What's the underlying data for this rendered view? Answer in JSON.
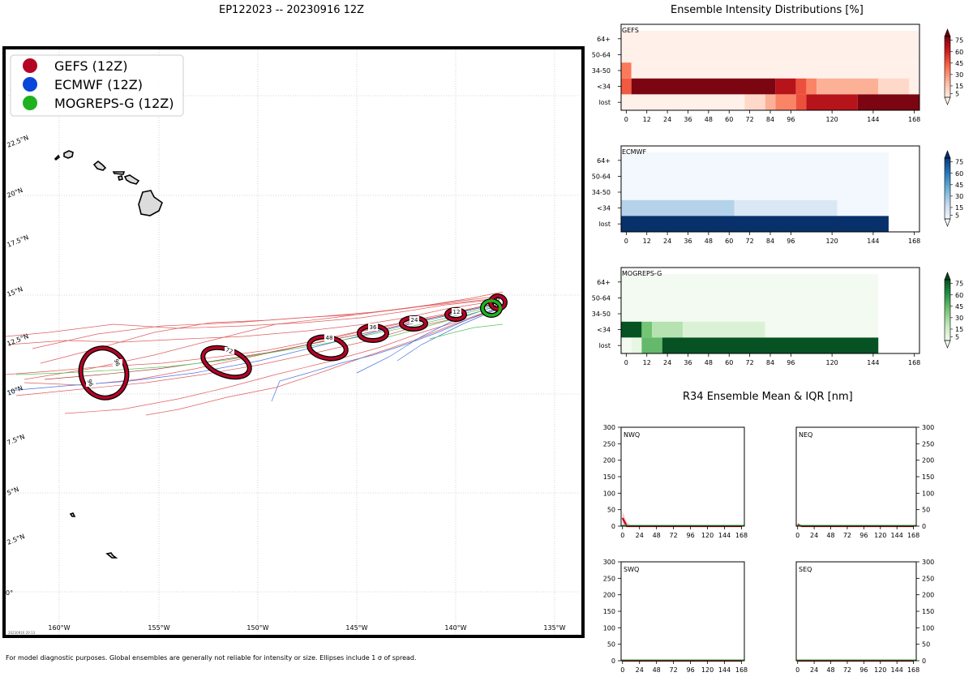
{
  "map": {
    "title": "EP122023 -- 20230916 12Z",
    "legend": [
      {
        "label": "GEFS (12Z)",
        "color": "#b40426"
      },
      {
        "label": "ECMWF (12Z)",
        "color": "#0b46db"
      },
      {
        "label": "MOGREPS-G (12Z)",
        "color": "#1fb21f"
      }
    ],
    "lat_labels": [
      "22.5°N",
      "20°N",
      "17.5°N",
      "15°N",
      "12.5°N",
      "10°N",
      "7.5°N",
      "5°N",
      "2.5°N",
      "0°"
    ],
    "lon_labels": [
      "160°W",
      "155°W",
      "150°W",
      "145°W",
      "140°W",
      "135°W"
    ],
    "stamp": "20230916 20:13",
    "footnote": "For model diagnostic purposes. Global ensembles are generally not reliable for intensity or size. Ellipses include 1 σ of spread."
  },
  "chart_data": [
    {
      "type": "heatmap",
      "title": "Ensemble Intensity Distributions [%]",
      "panels": [
        {
          "name": "GEFS",
          "cmap": "Reds",
          "y_categories": [
            "lost",
            "<34",
            "34-50",
            "50-64",
            "64+"
          ],
          "x_ticks": [
            0,
            12,
            24,
            36,
            48,
            60,
            72,
            84,
            96,
            120,
            144,
            168
          ],
          "xlim": [
            -3,
            171
          ],
          "cells": [
            {
              "cat": "64+",
              "x0": -3,
              "x1": 171,
              "v": 2
            },
            {
              "cat": "50-64",
              "x0": -3,
              "x1": 171,
              "v": 2
            },
            {
              "cat": "34-50",
              "x0": -3,
              "x1": 3,
              "v": 45
            },
            {
              "cat": "34-50",
              "x0": 3,
              "x1": 171,
              "v": 2
            },
            {
              "cat": "<34",
              "x0": -3,
              "x1": 3,
              "v": 55
            },
            {
              "cat": "<34",
              "x0": 3,
              "x1": 87,
              "v": 95
            },
            {
              "cat": "<34",
              "x0": 87,
              "x1": 99,
              "v": 80
            },
            {
              "cat": "<34",
              "x0": 99,
              "x1": 105,
              "v": 58
            },
            {
              "cat": "<34",
              "x0": 105,
              "x1": 111,
              "v": 42
            },
            {
              "cat": "<34",
              "x0": 111,
              "x1": 147,
              "v": 28
            },
            {
              "cat": "<34",
              "x0": 147,
              "x1": 165,
              "v": 12
            },
            {
              "cat": "<34",
              "x0": 165,
              "x1": 171,
              "v": 2
            },
            {
              "cat": "lost",
              "x0": -3,
              "x1": 69,
              "v": 2
            },
            {
              "cat": "lost",
              "x0": 69,
              "x1": 81,
              "v": 12
            },
            {
              "cat": "lost",
              "x0": 81,
              "x1": 87,
              "v": 28
            },
            {
              "cat": "lost",
              "x0": 87,
              "x1": 99,
              "v": 42
            },
            {
              "cat": "lost",
              "x0": 99,
              "x1": 105,
              "v": 58
            },
            {
              "cat": "lost",
              "x0": 105,
              "x1": 135,
              "v": 80
            },
            {
              "cat": "lost",
              "x0": 135,
              "x1": 171,
              "v": 95
            }
          ]
        },
        {
          "name": "ECMWF",
          "cmap": "Blues",
          "y_categories": [
            "lost",
            "<34",
            "34-50",
            "50-64",
            "64+"
          ],
          "x_ticks": [
            0,
            12,
            24,
            36,
            48,
            60,
            72,
            84,
            96,
            120,
            144,
            168
          ],
          "xlim": [
            -3,
            171
          ],
          "cells": [
            {
              "cat": "64+",
              "x0": -3,
              "x1": 153,
              "v": 2
            },
            {
              "cat": "50-64",
              "x0": -3,
              "x1": 153,
              "v": 2
            },
            {
              "cat": "34-50",
              "x0": -3,
              "x1": 153,
              "v": 2
            },
            {
              "cat": "<34",
              "x0": -3,
              "x1": 63,
              "v": 30
            },
            {
              "cat": "<34",
              "x0": 63,
              "x1": 123,
              "v": 15
            },
            {
              "cat": "<34",
              "x0": 123,
              "x1": 153,
              "v": 2
            },
            {
              "cat": "lost",
              "x0": -3,
              "x1": 153,
              "v": 100
            }
          ]
        },
        {
          "name": "MOGREPS-G",
          "cmap": "Greens",
          "y_categories": [
            "lost",
            "<34",
            "34-50",
            "50-64",
            "64+"
          ],
          "x_ticks": [
            0,
            12,
            24,
            36,
            48,
            60,
            72,
            84,
            96,
            120,
            144,
            168
          ],
          "xlim": [
            -3,
            171
          ],
          "cells": [
            {
              "cat": "64+",
              "x0": -3,
              "x1": 147,
              "v": 2
            },
            {
              "cat": "50-64",
              "x0": -3,
              "x1": 147,
              "v": 2
            },
            {
              "cat": "34-50",
              "x0": -3,
              "x1": 147,
              "v": 2
            },
            {
              "cat": "<34",
              "x0": -3,
              "x1": 9,
              "v": 95
            },
            {
              "cat": "<34",
              "x0": 9,
              "x1": 15,
              "v": 50
            },
            {
              "cat": "<34",
              "x0": 15,
              "x1": 33,
              "v": 30
            },
            {
              "cat": "<34",
              "x0": 33,
              "x1": 81,
              "v": 15
            },
            {
              "cat": "<34",
              "x0": 81,
              "x1": 147,
              "v": 2
            },
            {
              "cat": "lost",
              "x0": -3,
              "x1": 3,
              "v": 2
            },
            {
              "cat": "lost",
              "x0": 3,
              "x1": 9,
              "v": 8
            },
            {
              "cat": "lost",
              "x0": 9,
              "x1": 21,
              "v": 55
            },
            {
              "cat": "lost",
              "x0": 21,
              "x1": 147,
              "v": 95
            }
          ]
        }
      ],
      "colorbar_ticks": [
        5,
        15,
        30,
        45,
        60,
        75
      ]
    },
    {
      "type": "line",
      "title": "R34 Ensemble Mean & IQR [nm]",
      "x_ticks": [
        0,
        24,
        48,
        72,
        96,
        120,
        144,
        168
      ],
      "y_ticks": [
        0,
        50,
        100,
        150,
        200,
        250,
        300
      ],
      "xlim": [
        -2,
        172
      ],
      "ylim": [
        0,
        300
      ],
      "panels": [
        {
          "name": "NWQ",
          "y_axis": "left",
          "series": [
            {
              "name": "GEFS",
              "x": [
                0,
                6,
                12,
                24,
                48,
                96,
                144,
                168
              ],
              "values": [
                25,
                0,
                0,
                0,
                0,
                0,
                0,
                0
              ],
              "iqr_high": [
                45,
                12,
                2,
                0,
                0,
                0,
                0,
                0
              ]
            }
          ]
        },
        {
          "name": "NEQ",
          "y_axis": "right",
          "series": [
            {
              "name": "GEFS",
              "x": [
                0,
                6,
                12,
                24,
                48,
                96,
                144,
                168
              ],
              "values": [
                5,
                0,
                0,
                0,
                0,
                0,
                0,
                0
              ],
              "iqr_high": [
                10,
                2,
                0,
                0,
                0,
                0,
                0,
                0
              ]
            }
          ]
        },
        {
          "name": "SWQ",
          "y_axis": "left",
          "series": [
            {
              "name": "GEFS",
              "x": [
                0,
                168
              ],
              "values": [
                0,
                0
              ],
              "iqr_high": [
                0,
                0
              ]
            }
          ]
        },
        {
          "name": "SEQ",
          "y_axis": "right",
          "series": [
            {
              "name": "GEFS",
              "x": [
                0,
                168
              ],
              "values": [
                0,
                0
              ],
              "iqr_high": [
                0,
                0
              ]
            }
          ]
        }
      ]
    }
  ]
}
